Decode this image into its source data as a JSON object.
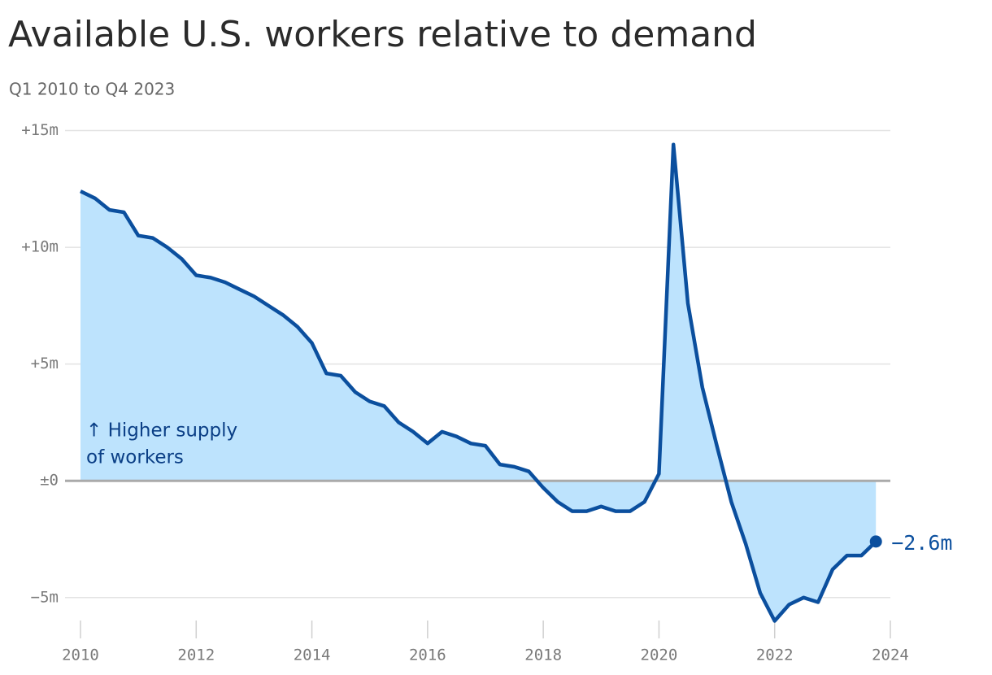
{
  "chart_data": {
    "type": "area-line",
    "title": "Available U.S. workers relative to demand",
    "subtitle": "Q1 2010 to Q4 2023",
    "annotation": [
      "↑ Higher supply",
      "of workers"
    ],
    "x": [
      2010,
      2010.25,
      2010.5,
      2010.75,
      2011,
      2011.25,
      2011.5,
      2011.75,
      2012,
      2012.25,
      2012.5,
      2012.75,
      2013,
      2013.25,
      2013.5,
      2013.75,
      2014,
      2014.25,
      2014.5,
      2014.75,
      2015,
      2015.25,
      2015.5,
      2015.75,
      2016,
      2016.25,
      2016.5,
      2016.75,
      2017,
      2017.25,
      2017.5,
      2017.75,
      2018,
      2018.25,
      2018.5,
      2018.75,
      2019,
      2019.25,
      2019.5,
      2019.75,
      2020,
      2020.25,
      2020.5,
      2020.75,
      2021,
      2021.25,
      2021.5,
      2021.75,
      2022,
      2022.25,
      2022.5,
      2022.75,
      2023,
      2023.25,
      2023.5,
      2023.75
    ],
    "series": [
      {
        "color": "#0b4f9e",
        "fill": "#bde3fd",
        "values": [
          12.4,
          12.1,
          11.6,
          11.5,
          10.5,
          10.4,
          10.0,
          9.5,
          8.8,
          8.7,
          8.5,
          8.2,
          7.9,
          7.5,
          7.1,
          6.6,
          5.9,
          4.6,
          4.5,
          3.8,
          3.4,
          3.2,
          2.5,
          2.1,
          1.6,
          2.1,
          1.9,
          1.6,
          1.5,
          0.7,
          0.6,
          0.4,
          -0.3,
          -0.9,
          -1.3,
          -1.3,
          -1.1,
          -1.3,
          -1.3,
          -0.9,
          0.3,
          14.4,
          7.6,
          4.0,
          1.5,
          -0.9,
          -2.7,
          -4.8,
          -6.0,
          -5.3,
          -5.0,
          -5.2,
          -3.8,
          -3.2,
          -3.2,
          -2.6
        ],
        "value_labels": [
          null,
          null,
          null,
          null,
          null,
          null,
          null,
          null,
          null,
          null,
          null,
          null,
          null,
          null,
          null,
          null,
          null,
          null,
          null,
          null,
          null,
          null,
          null,
          null,
          null,
          null,
          null,
          null,
          null,
          null,
          null,
          null,
          null,
          null,
          null,
          null,
          null,
          null,
          null,
          null,
          null,
          null,
          null,
          null,
          null,
          null,
          null,
          null,
          null,
          null,
          null,
          null,
          null,
          null,
          null,
          "−2.6m"
        ]
      }
    ],
    "xlim": [
      2010,
      2024
    ],
    "xticks": [
      2010,
      2012,
      2014,
      2016,
      2018,
      2020,
      2022,
      2024
    ],
    "ylim": [
      -6.4,
      15.4
    ],
    "yticks": [
      {
        "value": 15,
        "label": "+15m"
      },
      {
        "value": 10,
        "label": "+10m"
      },
      {
        "value": 5,
        "label": "+5m"
      },
      {
        "value": 0,
        "label": "±0"
      },
      {
        "value": -5,
        "label": "−5m"
      }
    ],
    "grid": true
  }
}
